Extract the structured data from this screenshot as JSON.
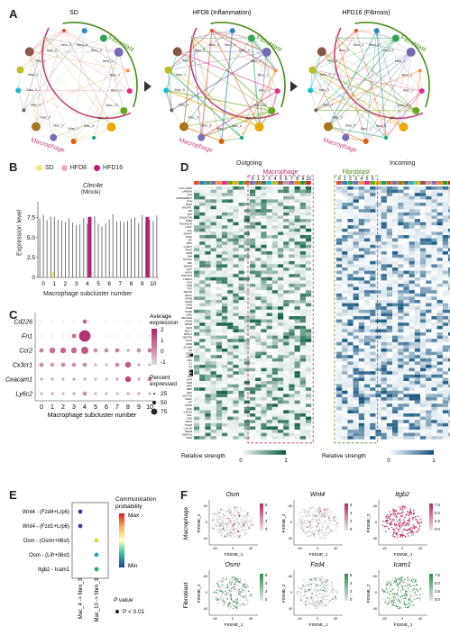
{
  "panelA": {
    "label": "A",
    "titles": [
      "SD",
      "HFD8 (Inflammation)",
      "HFD16 (Fibrosis)"
    ],
    "arc_labels": {
      "fibroblast": "Fibroblast",
      "macrophage": "Macrophage"
    },
    "fibro_nodes": [
      "fibro_5",
      "fibro_4",
      "fibro_3",
      "fibro_2",
      "fibro_1",
      "fibro_0"
    ],
    "mac_nodes": [
      "Mac_10",
      "Mac_9",
      "Mac_8",
      "Mac_7",
      "Mac_6",
      "Mac_5",
      "Mac_4",
      "Mac_3",
      "Mac_2",
      "Mac_1",
      "Mac_0"
    ],
    "colors": {
      "fibro_arc": "#4a8a1c",
      "mac_arc": "#c2407a"
    }
  },
  "panelB": {
    "label": "B",
    "legend": [
      {
        "name": "SD",
        "color": "#f2e37a"
      },
      {
        "name": "HFD8",
        "color": "#f4a9c4"
      },
      {
        "name": "HFD16",
        "color": "#b01f73"
      }
    ],
    "title": "Clec4e",
    "subtitle": "(Mincle)",
    "ylabel": "Expression level",
    "xlabel": "Macrophage subcluster number",
    "yticks": [
      "0",
      "2.5",
      "5.0",
      "7.5"
    ],
    "xticks": [
      "0",
      "1",
      "2",
      "3",
      "4",
      "5",
      "6",
      "7",
      "8",
      "9",
      "10"
    ]
  },
  "panelC": {
    "label": "C",
    "genes": [
      "Cd226",
      "Fn1",
      "Ccr2",
      "Cx3cr1",
      "Ceacam1",
      "Ly6c2"
    ],
    "xticks": [
      "0",
      "1",
      "2",
      "3",
      "4",
      "5",
      "6",
      "7",
      "8",
      "9",
      "10"
    ],
    "xlabel": "Macrophage subcluster number",
    "legend_color_title": "Average expression",
    "color_ticks": [
      "2",
      "1",
      "0",
      "-1"
    ],
    "legend_size_title": "Percent expressed",
    "size_ticks": [
      "25",
      "50",
      "75"
    ]
  },
  "panelD": {
    "label": "D",
    "outgoing": "Outgoing",
    "incoming": "Incoming",
    "macrophage": "Macrophage",
    "fibroblast": "Fibroblast",
    "mac_cols": [
      "0",
      "1",
      "2",
      "3",
      "4",
      "5",
      "6",
      "7",
      "8",
      "9",
      "10"
    ],
    "fib_cols": [
      "0",
      "1",
      "2",
      "3",
      "4",
      "5",
      "6"
    ],
    "pathways": [
      "COLLAGEN",
      "LAMININ",
      "FN1",
      "COMPLEMENT",
      "PTN",
      "SPP1",
      "ANGPTL",
      "MK",
      "APP",
      "GALECTIN",
      "THBS",
      "TENASCIN",
      "CXCL",
      "CCL",
      "ANGPT",
      "TGFb",
      "IGF",
      "WNT",
      "ncWNT",
      "PDGF",
      "CD99",
      "JAM",
      "NOTCH",
      "MIF",
      "SEMA3",
      "EGF",
      "HSPG",
      "VISFATIN",
      "TWEAK",
      "GAS",
      "GRN",
      "FGF",
      "SEMA6",
      "EPHA",
      "EPHB",
      "CADM",
      "CD45",
      "ICAM",
      "ITGB2",
      "CD52",
      "PECAM1",
      "CDH5",
      "ESAM",
      "CD34",
      "MHC-I",
      "MHC-II",
      "NECTIN",
      "OCLN",
      "CD86",
      "ALCAM",
      "SN",
      "CD39",
      "CD80",
      "CSF",
      "IL1",
      "IL2",
      "IL4",
      "IL6",
      "TNF",
      "LIFR",
      "OSM",
      "NRG",
      "BMP",
      "GDF",
      "ACTIVIN",
      "VEGF",
      "KIT",
      "PROS",
      "HGF",
      "CSPG4",
      "NGL",
      "CDH",
      "CDH1",
      "NCAM",
      "L1CAM",
      "NEGR",
      "SELPLG",
      "CD40"
    ],
    "scale_label": "Relative strength",
    "scale_ticks": [
      "0",
      "1"
    ],
    "out_color": "#0b5a3a",
    "in_color": "#0b4f7a"
  },
  "panelE": {
    "label": "E",
    "rows": [
      "Wnt4  - (Fzd4+Lrp6)",
      "Wnt4  - (Fzd1+Lrp6)",
      "Osm  - (Osmr+Il6st)",
      "Osm  - (Lifr+Il6st)",
      "Itgb2  - Icam1"
    ],
    "cols": [
      "Mac_4 -> fibro_3",
      "Mac_10 -> fibro_3"
    ],
    "prob_title": "Communication probability",
    "prob_max": "Max",
    "prob_min": "Min",
    "pvalue_title": "P value",
    "pvalue_item": "P < 0.01",
    "dots": [
      {
        "row": 0,
        "col": 0,
        "color": "#3a3aa8"
      },
      {
        "row": 1,
        "col": 0,
        "color": "#3a3aa8"
      },
      {
        "row": 2,
        "col": 1,
        "color": "#d8d84a"
      },
      {
        "row": 3,
        "col": 1,
        "color": "#2da3c0"
      },
      {
        "row": 4,
        "col": 1,
        "color": "#2ab05a"
      }
    ]
  },
  "panelF": {
    "label": "F",
    "row_labels": [
      "Macrophage",
      "Fibroblast"
    ],
    "genes_top": [
      "Osm",
      "Wnt4",
      "Itgb2"
    ],
    "genes_bottom": [
      "Osmr",
      "Fzd4",
      "Icam1"
    ],
    "xlabel": "FItSNE_1",
    "ylabel": "FItSNE_2",
    "axis_ticks": [
      "-40",
      "0",
      "40"
    ],
    "scales": [
      [
        "6",
        "4",
        "2",
        "0"
      ],
      [
        "6",
        "4",
        "2",
        "0"
      ],
      [
        "7.5",
        "5.0",
        "2.5",
        "0.0"
      ],
      [
        "6",
        "4",
        "2",
        "0"
      ],
      [
        "6",
        "4",
        "2",
        "0"
      ],
      [
        "7.5",
        "5.0",
        "2.5",
        "0.0"
      ]
    ],
    "mac_color": "#b82664",
    "fib_color": "#2b8f4a"
  }
}
